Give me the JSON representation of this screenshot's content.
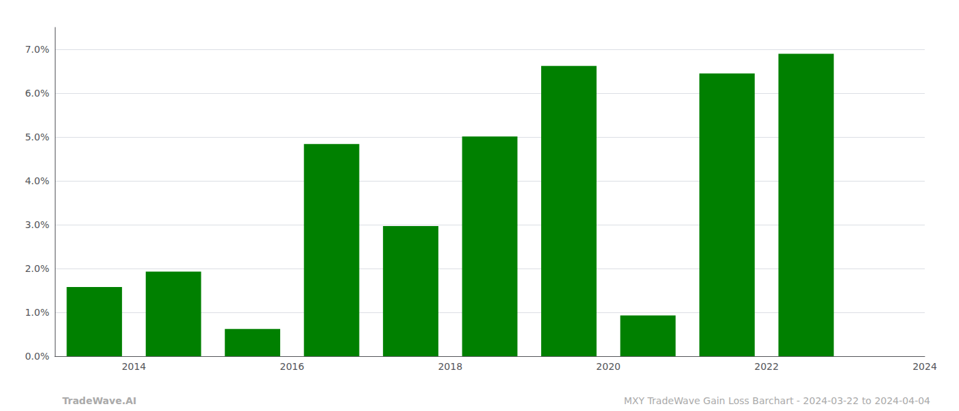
{
  "chart_data": {
    "type": "bar",
    "x": [
      2013.5,
      2014.5,
      2015.5,
      2016.5,
      2017.5,
      2018.5,
      2019.5,
      2020.5,
      2021.5,
      2022.5
    ],
    "values": [
      0.0158,
      0.0193,
      0.0062,
      0.0484,
      0.0297,
      0.0501,
      0.0662,
      0.0093,
      0.0645,
      0.069
    ],
    "color": "#008000",
    "xlim": [
      2013.0,
      2024.0
    ],
    "xticks": [
      2014,
      2016,
      2018,
      2020,
      2022,
      2024
    ],
    "ylim": [
      0.0,
      0.075
    ],
    "yticks": [
      {
        "value": 0.0,
        "label": "0.0%"
      },
      {
        "value": 0.01,
        "label": "1.0%"
      },
      {
        "value": 0.02,
        "label": "2.0%"
      },
      {
        "value": 0.03,
        "label": "3.0%"
      },
      {
        "value": 0.04,
        "label": "4.0%"
      },
      {
        "value": 0.05,
        "label": "5.0%"
      },
      {
        "value": 0.06,
        "label": "6.0%"
      },
      {
        "value": 0.07,
        "label": "7.0%"
      }
    ],
    "grid": true,
    "annotations": [
      "TradeWave.AI",
      "MXY TradeWave Gain Loss Barchart - 2024-03-22 to 2024-04-04"
    ]
  }
}
